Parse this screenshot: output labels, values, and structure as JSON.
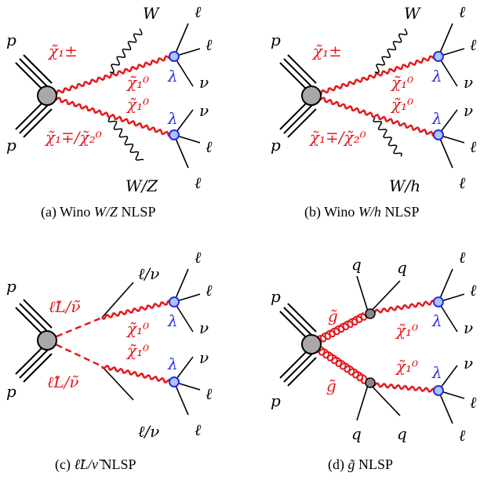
{
  "colors": {
    "sparticle": "#e4181c",
    "coupling": "#2a2ae8",
    "vertex_fill": "#a8a8a8",
    "line": "#000000"
  },
  "panels": [
    {
      "id": "a",
      "proton_top": "p",
      "proton_bottom": "p",
      "upper_sparticle": "χ̃₁±",
      "lower_sparticle": "χ̃₁∓/χ̃₂⁰",
      "lsp_upper": "χ̃₁⁰",
      "lsp_lower": "χ̃₁⁰",
      "boson_upper": "W",
      "boson_lower": "W/Z",
      "coupling_upper": "λ",
      "coupling_lower": "λ",
      "upper_leg_labels": [
        "ℓ",
        "ℓ",
        "ν"
      ],
      "lower_leg_labels": [
        "ν",
        "ℓ",
        "ℓ"
      ],
      "caption_prefix": "(a) Wino ",
      "caption_math": "W/Z",
      "caption_suffix": " NLSP"
    },
    {
      "id": "b",
      "proton_top": "p",
      "proton_bottom": "p",
      "upper_sparticle": "χ̃₁±",
      "lower_sparticle": "χ̃₁∓/χ̃₂⁰",
      "lsp_upper": "χ̃₁⁰",
      "lsp_lower": "χ̃₁⁰",
      "boson_upper": "W",
      "boson_lower": "W/h",
      "coupling_upper": "λ",
      "coupling_lower": "λ",
      "upper_leg_labels": [
        "ℓ",
        "ℓ",
        "ν"
      ],
      "lower_leg_labels": [
        "ν",
        "ℓ",
        "ℓ"
      ],
      "caption_prefix": "(b) Wino ",
      "caption_math": "W/h",
      "caption_suffix": " NLSP"
    },
    {
      "id": "c",
      "proton_top": "p",
      "proton_bottom": "p",
      "upper_sparticle": "ℓ̃L/ν̃",
      "lower_sparticle": "ℓ̃L/ν̃",
      "lsp_upper": "χ̃₁⁰",
      "lsp_lower": "χ̃₁⁰",
      "lepton_upper": "ℓ/ν",
      "lepton_lower": "ℓ/ν",
      "coupling_upper": "λ",
      "coupling_lower": "λ",
      "upper_leg_labels": [
        "ℓ",
        "ℓ",
        "ν"
      ],
      "lower_leg_labels": [
        "ν",
        "ℓ",
        "ℓ"
      ],
      "caption_prefix": "(c) ",
      "caption_math": "ℓ̃L/ν̃",
      "caption_suffix": " NLSP"
    },
    {
      "id": "d",
      "proton_top": "p",
      "proton_bottom": "p",
      "upper_sparticle": "g̃",
      "lower_sparticle": "g̃",
      "lsp_upper": "χ̃₁⁰",
      "lsp_lower": "χ̃₁⁰",
      "quarks_upper": [
        "q",
        "q"
      ],
      "quarks_lower": [
        "q",
        "q"
      ],
      "coupling_upper": "λ",
      "coupling_lower": "λ",
      "upper_leg_labels": [
        "ℓ",
        "ℓ",
        "ν"
      ],
      "lower_leg_labels": [
        "ν",
        "ℓ",
        "ℓ"
      ],
      "caption_prefix": "(d) ",
      "caption_math": "g̃",
      "caption_suffix": " NLSP"
    }
  ]
}
